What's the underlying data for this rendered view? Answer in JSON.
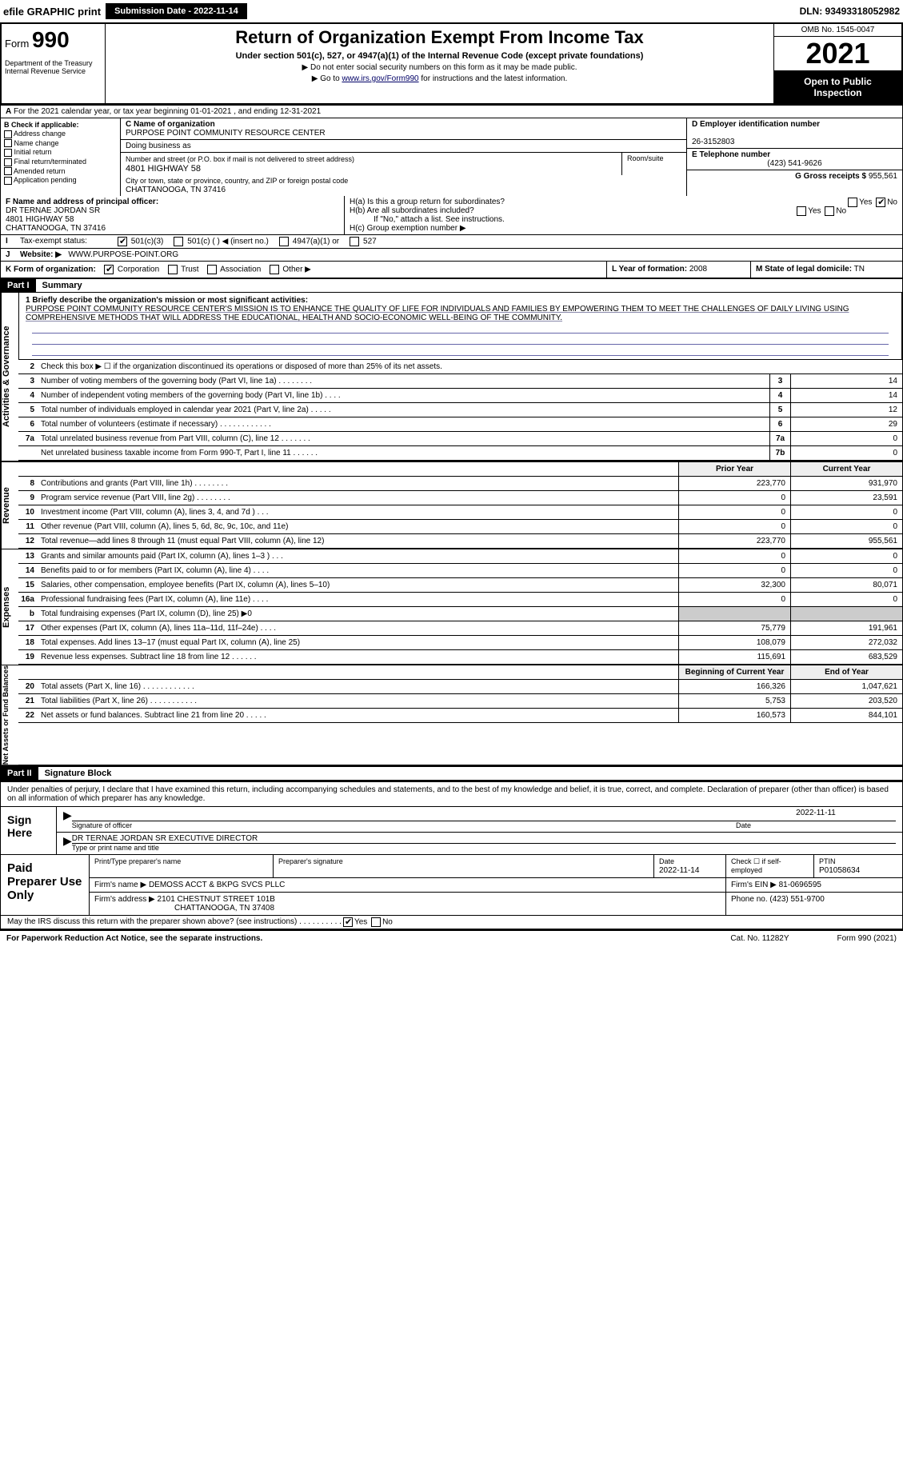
{
  "top": {
    "efile": "efile GRAPHIC print",
    "submission": "Submission Date - 2022-11-14",
    "dln": "DLN: 93493318052982"
  },
  "header": {
    "form": "Form",
    "form_num": "990",
    "title": "Return of Organization Exempt From Income Tax",
    "subtitle": "Under section 501(c), 527, or 4947(a)(1) of the Internal Revenue Code (except private foundations)",
    "note1": "▶ Do not enter social security numbers on this form as it may be made public.",
    "note2_pre": "▶ Go to ",
    "note2_link": "www.irs.gov/Form990",
    "note2_post": " for instructions and the latest information.",
    "dept": "Department of the Treasury\nInternal Revenue Service",
    "omb": "OMB No. 1545-0047",
    "year": "2021",
    "open": "Open to Public Inspection"
  },
  "a": {
    "text": "For the 2021 calendar year, or tax year beginning 01-01-2021    , and ending 12-31-2021"
  },
  "b": {
    "label": "B Check if applicable:",
    "items": [
      "Address change",
      "Name change",
      "Initial return",
      "Final return/terminated",
      "Amended return",
      "Application pending"
    ]
  },
  "c": {
    "name_label": "C Name of organization",
    "name": "PURPOSE POINT COMMUNITY RESOURCE CENTER",
    "dba_label": "Doing business as",
    "street_label": "Number and street (or P.O. box if mail is not delivered to street address)",
    "room_label": "Room/suite",
    "street": "4801 HIGHWAY 58",
    "city_label": "City or town, state or province, country, and ZIP or foreign postal code",
    "city": "CHATTANOOGA, TN  37416"
  },
  "d": {
    "ein_label": "D Employer identification number",
    "ein": "26-3152803",
    "phone_label": "E Telephone number",
    "phone": "(423) 541-9626",
    "gross_label": "G Gross receipts $",
    "gross": "955,561"
  },
  "f": {
    "label": "F  Name and address of principal officer:",
    "name": "DR TERNAE JORDAN SR",
    "street": "4801 HIGHWAY 58",
    "city": "CHATTANOOGA, TN  37416"
  },
  "h": {
    "a": "H(a)  Is this a group return for subordinates?",
    "b": "H(b)  Are all subordinates included?",
    "b2": "If \"No,\" attach a list. See instructions.",
    "c": "H(c)  Group exemption number ▶"
  },
  "i": {
    "label": "Tax-exempt status:",
    "opts": [
      "501(c)(3)",
      "501(c) (   ) ◀ (insert no.)",
      "4947(a)(1) or",
      "527"
    ]
  },
  "j": {
    "label": "Website: ▶",
    "val": "WWW.PURPOSE-POINT.ORG"
  },
  "k": {
    "label": "K Form of organization:",
    "opts": [
      "Corporation",
      "Trust",
      "Association",
      "Other ▶"
    ],
    "l_label": "L Year of formation:",
    "l_val": "2008",
    "m_label": "M State of legal domicile:",
    "m_val": "TN"
  },
  "part1": {
    "hdr": "Part I",
    "title": "Summary",
    "mission_label": "1 Briefly describe the organization's mission or most significant activities:",
    "mission": "PURPOSE POINT COMMUNITY RESOURCE CENTER'S MISSION IS TO ENHANCE THE QUALITY OF LIFE FOR INDIVIDUALS AND FAMILIES BY EMPOWERING THEM TO MEET THE CHALLENGES OF DAILY LIVING USING COMPREHENSIVE METHODS THAT WILL ADDRESS THE EDUCATIONAL, HEALTH AND SOCIO-ECONOMIC WELL-BEING OF THE COMMUNITY.",
    "line2": "Check this box ▶ ☐  if the organization discontinued its operations or disposed of more than 25% of its net assets.",
    "sidebars": [
      "Activities & Governance",
      "Revenue",
      "Expenses",
      "Net Assets or Fund Balances"
    ]
  },
  "gov_rows": [
    {
      "n": "3",
      "lbl": "Number of voting members of the governing body (Part VI, line 1a)  .   .   .   .   .   .   .   .",
      "box": "3",
      "v": "14"
    },
    {
      "n": "4",
      "lbl": "Number of independent voting members of the governing body (Part VI, line 1b)  .   .   .   .",
      "box": "4",
      "v": "14"
    },
    {
      "n": "5",
      "lbl": "Total number of individuals employed in calendar year 2021 (Part V, line 2a)  .   .   .   .   .",
      "box": "5",
      "v": "12"
    },
    {
      "n": "6",
      "lbl": "Total number of volunteers (estimate if necessary)   .   .   .   .   .   .   .   .   .   .   .   .",
      "box": "6",
      "v": "29"
    },
    {
      "n": "7a",
      "lbl": "Total unrelated business revenue from Part VIII, column (C), line 12  .   .   .   .   .   .   .",
      "box": "7a",
      "v": "0"
    },
    {
      "n": "",
      "lbl": "Net unrelated business taxable income from Form 990-T, Part I, line 11  .   .   .   .   .   .",
      "box": "7b",
      "v": "0"
    }
  ],
  "col_hdrs": {
    "prior": "Prior Year",
    "current": "Current Year"
  },
  "rev_rows": [
    {
      "n": "8",
      "lbl": "Contributions and grants (Part VIII, line 1h)   .   .   .   .   .   .   .   .",
      "p": "223,770",
      "c": "931,970"
    },
    {
      "n": "9",
      "lbl": "Program service revenue (Part VIII, line 2g)   .   .   .   .   .   .   .   .",
      "p": "0",
      "c": "23,591"
    },
    {
      "n": "10",
      "lbl": "Investment income (Part VIII, column (A), lines 3, 4, and 7d )   .   .   .",
      "p": "0",
      "c": "0"
    },
    {
      "n": "11",
      "lbl": "Other revenue (Part VIII, column (A), lines 5, 6d, 8c, 9c, 10c, and 11e)",
      "p": "0",
      "c": "0"
    },
    {
      "n": "12",
      "lbl": "Total revenue—add lines 8 through 11 (must equal Part VIII, column (A), line 12)",
      "p": "223,770",
      "c": "955,561"
    }
  ],
  "exp_rows": [
    {
      "n": "13",
      "lbl": "Grants and similar amounts paid (Part IX, column (A), lines 1–3 )   .   .   .",
      "p": "0",
      "c": "0"
    },
    {
      "n": "14",
      "lbl": "Benefits paid to or for members (Part IX, column (A), line 4)   .   .   .   .",
      "p": "0",
      "c": "0"
    },
    {
      "n": "15",
      "lbl": "Salaries, other compensation, employee benefits (Part IX, column (A), lines 5–10)",
      "p": "32,300",
      "c": "80,071"
    },
    {
      "n": "16a",
      "lbl": "Professional fundraising fees (Part IX, column (A), line 11e)   .   .   .   .",
      "p": "0",
      "c": "0"
    },
    {
      "n": "b",
      "lbl": "Total fundraising expenses (Part IX, column (D), line 25) ▶0",
      "p": "",
      "c": "",
      "shade": true
    },
    {
      "n": "17",
      "lbl": "Other expenses (Part IX, column (A), lines 11a–11d, 11f–24e)   .   .   .   .",
      "p": "75,779",
      "c": "191,961"
    },
    {
      "n": "18",
      "lbl": "Total expenses. Add lines 13–17 (must equal Part IX, column (A), line 25)",
      "p": "108,079",
      "c": "272,032"
    },
    {
      "n": "19",
      "lbl": "Revenue less expenses. Subtract line 18 from line 12  .   .   .   .   .   .",
      "p": "115,691",
      "c": "683,529"
    }
  ],
  "net_hdrs": {
    "begin": "Beginning of Current Year",
    "end": "End of Year"
  },
  "net_rows": [
    {
      "n": "20",
      "lbl": "Total assets (Part X, line 16)  .   .   .   .   .   .   .   .   .   .   .   .",
      "p": "166,326",
      "c": "1,047,621"
    },
    {
      "n": "21",
      "lbl": "Total liabilities (Part X, line 26)  .   .   .   .   .   .   .   .   .   .   .",
      "p": "5,753",
      "c": "203,520"
    },
    {
      "n": "22",
      "lbl": "Net assets or fund balances. Subtract line 21 from line 20  .   .   .   .   .",
      "p": "160,573",
      "c": "844,101"
    }
  ],
  "part2": {
    "hdr": "Part II",
    "title": "Signature Block",
    "penalty": "Under penalties of perjury, I declare that I have examined this return, including accompanying schedules and statements, and to the best of my knowledge and belief, it is true, correct, and complete. Declaration of preparer (other than officer) is based on all information of which preparer has any knowledge.",
    "sign": "Sign Here",
    "sig_officer": "Signature of officer",
    "date": "Date",
    "sig_date": "2022-11-11",
    "officer": "DR TERNAE JORDAN SR  EXECUTIVE DIRECTOR",
    "type_name": "Type or print name and title",
    "paid": "Paid Preparer Use Only",
    "prep_name_lbl": "Print/Type preparer's name",
    "prep_sig_lbl": "Preparer's signature",
    "prep_date_lbl": "Date",
    "prep_date": "2022-11-14",
    "check_lbl": "Check ☐ if self-employed",
    "ptin_lbl": "PTIN",
    "ptin": "P01058634",
    "firm_name_lbl": "Firm's name    ▶",
    "firm_name": "DEMOSS ACCT & BKPG SVCS PLLC",
    "firm_ein_lbl": "Firm's EIN ▶",
    "firm_ein": "81-0696595",
    "firm_addr_lbl": "Firm's address ▶",
    "firm_addr1": "2101 CHESTNUT STREET 101B",
    "firm_addr2": "CHATTANOOGA, TN  37408",
    "firm_phone_lbl": "Phone no.",
    "firm_phone": "(423) 551-9700",
    "may_irs": "May the IRS discuss this return with the preparer shown above? (see instructions)  .   .   .   .   .   .   .   .   .   ."
  },
  "footer": {
    "left": "For Paperwork Reduction Act Notice, see the separate instructions.",
    "mid": "Cat. No. 11282Y",
    "right": "Form 990 (2021)"
  }
}
